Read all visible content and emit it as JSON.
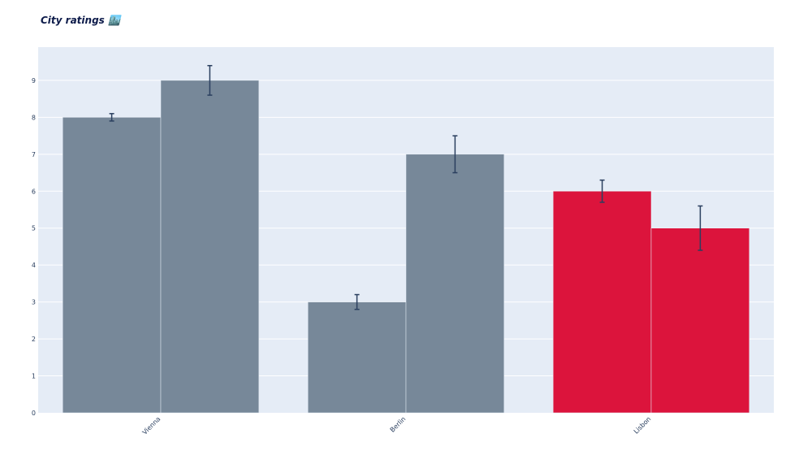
{
  "chart_data": {
    "type": "bar",
    "title": "City ratings 🏙️",
    "xlabel": "",
    "ylabel": "",
    "categories": [
      "Vienna",
      "Berlin",
      "Lisbon"
    ],
    "series": [
      {
        "values": [
          8,
          3,
          6
        ],
        "errors": [
          0.1,
          0.2,
          0.3
        ],
        "colors": [
          "#778899",
          "#778899",
          "#DC143C"
        ]
      },
      {
        "values": [
          9,
          7,
          5
        ],
        "errors": [
          0.4,
          0.5,
          0.6
        ],
        "colors": [
          "#778899",
          "#778899",
          "#DC143C"
        ]
      }
    ],
    "ylim": [
      0,
      9.9
    ],
    "yticks": [
      0,
      1,
      2,
      3,
      4,
      5,
      6,
      7,
      8,
      9
    ],
    "grid": true,
    "legend": "none",
    "barmode": "group",
    "colors": {
      "background": "#E5ECF6",
      "grid": "#FFFFFF",
      "error_bar": "#2a3f5f"
    }
  }
}
